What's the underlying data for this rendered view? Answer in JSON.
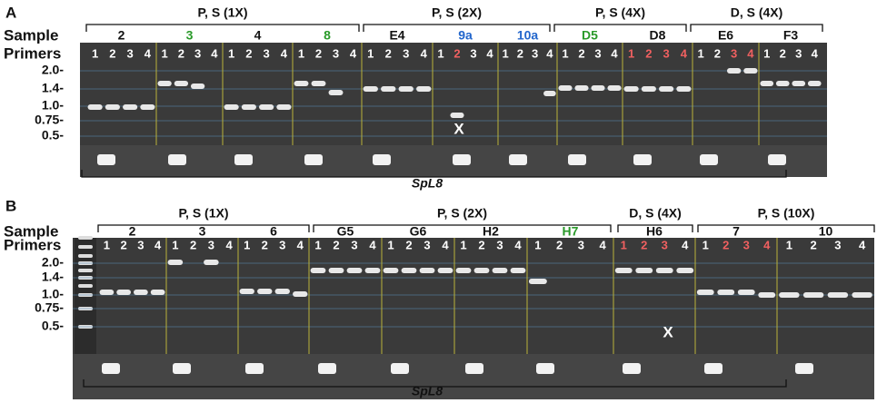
{
  "panels": [
    {
      "label": "A",
      "row_labels": [
        "Sample",
        "Primers"
      ],
      "groups": [
        "P, S (1X)",
        "P, S (2X)",
        "P, S (4X)",
        "D, S (4X)"
      ],
      "samples": [
        {
          "label": "2",
          "color": "#111111",
          "lanes": [
            1,
            2,
            3,
            4
          ],
          "lane_colors": [
            "#fff",
            "#fff",
            "#fff",
            "#fff"
          ]
        },
        {
          "label": "3",
          "color": "#2a9a2a",
          "lanes": [
            1,
            2,
            3,
            4
          ],
          "lane_colors": [
            "#fff",
            "#fff",
            "#fff",
            "#fff"
          ]
        },
        {
          "label": "4",
          "color": "#111111",
          "lanes": [
            1,
            2,
            3,
            4
          ],
          "lane_colors": [
            "#fff",
            "#fff",
            "#fff",
            "#fff"
          ]
        },
        {
          "label": "8",
          "color": "#2a9a2a",
          "lanes": [
            1,
            2,
            3,
            4
          ],
          "lane_colors": [
            "#fff",
            "#fff",
            "#fff",
            "#fff"
          ]
        },
        {
          "label": "E4",
          "color": "#111111",
          "lanes": [
            1,
            2,
            3,
            4
          ],
          "lane_colors": [
            "#fff",
            "#fff",
            "#fff",
            "#fff"
          ]
        },
        {
          "label": "9a",
          "color": "#2266cc",
          "lanes": [
            1,
            2,
            3,
            4
          ],
          "lane_colors": [
            "#fff",
            "#f06060",
            "#fff",
            "#fff"
          ]
        },
        {
          "label": "10a",
          "color": "#2266cc",
          "lanes": [
            1,
            2,
            3,
            4
          ],
          "lane_colors": [
            "#fff",
            "#fff",
            "#fff",
            "#fff"
          ]
        },
        {
          "label": "D5",
          "color": "#2a9a2a",
          "lanes": [
            1,
            2,
            3,
            4
          ],
          "lane_colors": [
            "#fff",
            "#fff",
            "#fff",
            "#fff"
          ]
        },
        {
          "label": "D8",
          "color": "#111111",
          "lanes": [
            1,
            2,
            3,
            4
          ],
          "lane_colors": [
            "#f06060",
            "#f06060",
            "#f06060",
            "#f06060"
          ]
        },
        {
          "label": "E6",
          "color": "#111111",
          "lanes": [
            1,
            2,
            3,
            4
          ],
          "lane_colors": [
            "#fff",
            "#fff",
            "#f06060",
            "#f06060"
          ]
        },
        {
          "label": "F3",
          "color": "#111111",
          "lanes": [
            1,
            2,
            3,
            4
          ],
          "lane_colors": [
            "#fff",
            "#fff",
            "#fff",
            "#fff"
          ]
        }
      ],
      "ladder": [
        "2.0-",
        "1.4-",
        "1.0-",
        "0.75-",
        "0.5-"
      ],
      "marks": [
        "X"
      ],
      "footer": "SpL8"
    },
    {
      "label": "B",
      "row_labels": [
        "Sample",
        "Primers"
      ],
      "groups": [
        "P, S (1X)",
        "P, S (2X)",
        "D, S (4X)",
        "P, S (10X)"
      ],
      "samples": [
        {
          "label": "2",
          "color": "#111111",
          "lanes": [
            1,
            2,
            3,
            4
          ],
          "lane_colors": [
            "#fff",
            "#fff",
            "#fff",
            "#fff"
          ]
        },
        {
          "label": "3",
          "color": "#111111",
          "lanes": [
            1,
            2,
            3,
            4
          ],
          "lane_colors": [
            "#fff",
            "#fff",
            "#fff",
            "#fff"
          ]
        },
        {
          "label": "6",
          "color": "#111111",
          "lanes": [
            1,
            2,
            3,
            4
          ],
          "lane_colors": [
            "#fff",
            "#fff",
            "#fff",
            "#fff"
          ]
        },
        {
          "label": "G5",
          "color": "#111111",
          "lanes": [
            1,
            2,
            3,
            4
          ],
          "lane_colors": [
            "#fff",
            "#fff",
            "#fff",
            "#fff"
          ]
        },
        {
          "label": "G6",
          "color": "#111111",
          "lanes": [
            1,
            2,
            3,
            4
          ],
          "lane_colors": [
            "#fff",
            "#fff",
            "#fff",
            "#fff"
          ]
        },
        {
          "label": "H2",
          "color": "#111111",
          "lanes": [
            1,
            2,
            3,
            4
          ],
          "lane_colors": [
            "#fff",
            "#fff",
            "#fff",
            "#fff"
          ]
        },
        {
          "label": "H7",
          "color": "#2a9a2a",
          "lanes": [
            1,
            2,
            3,
            4
          ],
          "lane_colors": [
            "#fff",
            "#fff",
            "#fff",
            "#fff"
          ]
        },
        {
          "label": "H6",
          "color": "#111111",
          "lanes": [
            1,
            2,
            3,
            4
          ],
          "lane_colors": [
            "#f06060",
            "#f06060",
            "#f06060",
            "#fff"
          ]
        },
        {
          "label": "7",
          "color": "#111111",
          "lanes": [
            1,
            2,
            3,
            4
          ],
          "lane_colors": [
            "#fff",
            "#f06060",
            "#f06060",
            "#f06060"
          ]
        },
        {
          "label": "10",
          "color": "#111111",
          "lanes": [
            1,
            2,
            3,
            4
          ],
          "lane_colors": [
            "#fff",
            "#fff",
            "#fff",
            "#fff"
          ]
        }
      ],
      "ladder": [
        "2.0-",
        "1.4-",
        "1.0-",
        "0.75-",
        "0.5-"
      ],
      "marks": [
        "X"
      ],
      "footer": "SpL8"
    }
  ]
}
